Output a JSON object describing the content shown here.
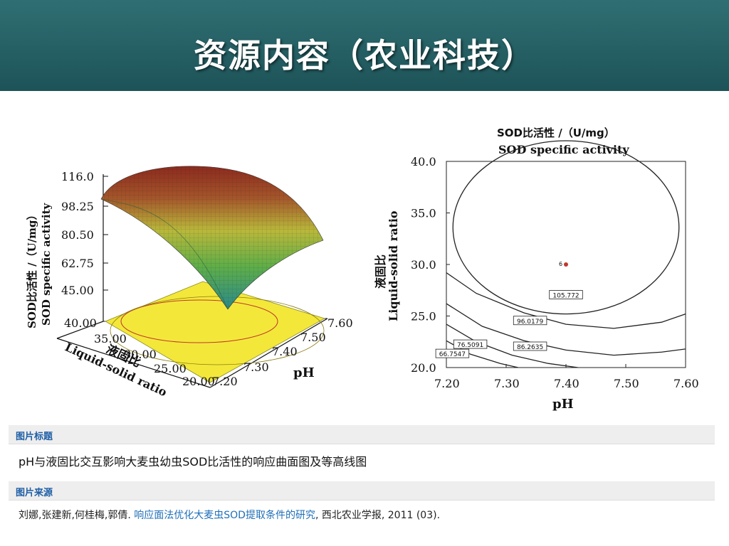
{
  "header": {
    "title": "资源内容（农业科技）"
  },
  "left_chart": {
    "z_label_cn": "SOD比活性 /（U/mg）",
    "z_label_en": "SOD specific activity",
    "z_ticks": [
      "116.0",
      "98.25",
      "80.50",
      "62.75",
      "45.00"
    ],
    "y_label_cn": "液固比",
    "y_label_en": "Liquid-solid ratio",
    "y_ticks": [
      "40.00",
      "35.00",
      "30.00",
      "25.00",
      "20.00"
    ],
    "x_label": "pH",
    "x_ticks": [
      "7.20",
      "7.30",
      "7.40",
      "7.50",
      "7.60"
    ]
  },
  "right_chart": {
    "title_cn": "SOD比活性 /（U/mg）",
    "title_en": "SOD specific activity",
    "y_label_cn": "液固比",
    "y_label_en": "Liquid-solid ratio",
    "x_label": "pH",
    "center_point_label": "6"
  },
  "chart_data": [
    {
      "type": "surface",
      "title": "",
      "xlabel": "pH",
      "ylabel": "液固比 Liquid-solid ratio",
      "zlabel": "SOD比活性 /（U/mg） SOD specific activity",
      "xlim": [
        7.2,
        7.6
      ],
      "ylim": [
        20.0,
        40.0
      ],
      "zlim": [
        45.0,
        116.0
      ],
      "x_ticks": [
        7.2,
        7.3,
        7.4,
        7.5,
        7.6
      ],
      "y_ticks": [
        20.0,
        25.0,
        30.0,
        35.0,
        40.0
      ],
      "z_ticks": [
        45.0,
        62.75,
        80.5,
        98.25,
        116.0
      ]
    },
    {
      "type": "contour",
      "title": "SOD比活性 /（U/mg） SOD specific activity",
      "xlabel": "pH",
      "ylabel": "液固比 Liquid-solid ratio",
      "xlim": [
        7.2,
        7.6
      ],
      "ylim": [
        20.0,
        40.0
      ],
      "x_ticks": [
        "7.20",
        "7.30",
        "7.40",
        "7.50",
        "7.60"
      ],
      "y_ticks": [
        "20.0",
        "25.0",
        "30.0",
        "35.0",
        "40.0"
      ],
      "contour_levels": [
        {
          "label": "105.772",
          "x": 7.4,
          "y": 27.0
        },
        {
          "label": "96.0179",
          "x": 7.34,
          "y": 24.5
        },
        {
          "label": "86.2635",
          "x": 7.34,
          "y": 22.0
        },
        {
          "label": "76.5091",
          "x": 7.24,
          "y": 22.2
        },
        {
          "label": "66.7547",
          "x": 7.21,
          "y": 21.3
        }
      ],
      "center_point": {
        "label": "6",
        "x": 7.4,
        "y": 30.0
      }
    }
  ],
  "figure_caption": {
    "heading": "图片标题",
    "text": "pH与液固比交互影响大麦虫幼虫SOD比活性的响应曲面图及等高线图"
  },
  "figure_source": {
    "heading": "图片来源",
    "authors": "刘娜,张建新,何桂梅,郭倩.",
    "link_text": "响应面法优化大麦虫SOD提取条件的研究",
    "rest": ", 西北农业学报, 2011 (03)."
  }
}
